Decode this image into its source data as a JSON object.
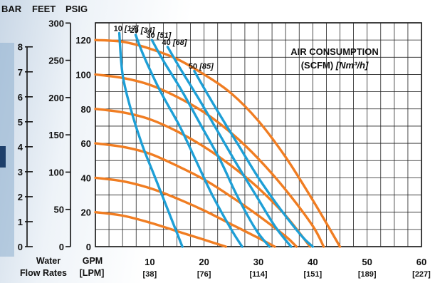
{
  "header": {
    "bar": "BAR",
    "feet": "FEET",
    "psig": "PSIG"
  },
  "chart_data": {
    "type": "line",
    "title": "AIR CONSUMPTION",
    "subtitle_prefix": "(SCFM) ",
    "subtitle_units": "[Nm³/h]",
    "xlabel_left_top": "Water",
    "xlabel_left_bottom": "Flow Rates",
    "xlabel_gpm": "GPM",
    "xlabel_lpm": "[LPM]",
    "xlim": [
      0,
      60
    ],
    "ylim": [
      0,
      130
    ],
    "x_ticks": [
      {
        "value": 10,
        "label": "10",
        "sub": "[38]"
      },
      {
        "value": 20,
        "label": "20",
        "sub": "[76]"
      },
      {
        "value": 30,
        "label": "30",
        "sub": "[114]"
      },
      {
        "value": 40,
        "label": "40",
        "sub": "[151]"
      },
      {
        "value": 50,
        "label": "50",
        "sub": "[189]"
      },
      {
        "value": 60,
        "label": "60",
        "sub": "[227]"
      }
    ],
    "y_ticks_psig": [
      0,
      20,
      40,
      60,
      80,
      100,
      120
    ],
    "y_ticks_feet": [
      0,
      50,
      100,
      150,
      200,
      250,
      300
    ],
    "y_ticks_bar": [
      0,
      1,
      2,
      3,
      4,
      5,
      6,
      7,
      8
    ],
    "pressure_series": [
      {
        "color": "#f07d22",
        "points": [
          [
            0,
            120
          ],
          [
            5,
            119
          ],
          [
            10,
            115
          ],
          [
            15,
            109
          ],
          [
            20,
            100
          ],
          [
            25,
            89
          ],
          [
            30,
            73
          ],
          [
            35,
            52
          ],
          [
            40,
            27
          ],
          [
            45,
            0
          ]
        ]
      },
      {
        "color": "#f07d22",
        "points": [
          [
            0,
            100
          ],
          [
            5,
            98
          ],
          [
            10,
            94
          ],
          [
            15,
            87
          ],
          [
            20,
            78
          ],
          [
            25,
            66
          ],
          [
            30,
            51
          ],
          [
            35,
            33
          ],
          [
            40,
            12
          ],
          [
            42,
            0
          ]
        ]
      },
      {
        "color": "#f07d22",
        "points": [
          [
            0,
            80
          ],
          [
            5,
            78
          ],
          [
            10,
            74
          ],
          [
            15,
            67
          ],
          [
            20,
            58
          ],
          [
            25,
            47
          ],
          [
            30,
            34
          ],
          [
            35,
            18
          ],
          [
            39.5,
            0
          ]
        ]
      },
      {
        "color": "#f07d22",
        "points": [
          [
            0,
            60
          ],
          [
            5,
            58
          ],
          [
            10,
            54
          ],
          [
            15,
            47
          ],
          [
            20,
            39
          ],
          [
            25,
            29
          ],
          [
            30,
            18
          ],
          [
            35,
            6
          ],
          [
            37,
            0
          ]
        ]
      },
      {
        "color": "#f07d22",
        "points": [
          [
            0,
            40
          ],
          [
            5,
            38
          ],
          [
            10,
            34
          ],
          [
            15,
            28
          ],
          [
            20,
            21
          ],
          [
            25,
            13
          ],
          [
            30,
            5
          ],
          [
            33,
            0
          ]
        ]
      },
      {
        "color": "#f07d22",
        "points": [
          [
            0,
            20
          ],
          [
            5,
            18
          ],
          [
            10,
            14
          ],
          [
            15,
            9
          ],
          [
            20,
            4
          ],
          [
            24,
            0
          ]
        ]
      }
    ],
    "air_series": [
      {
        "label": "10",
        "nm": "[17]",
        "color": "#1e9fd6",
        "points": [
          [
            4.4,
            124
          ],
          [
            5,
            100
          ],
          [
            6.5,
            80
          ],
          [
            8.5,
            60
          ],
          [
            11,
            40
          ],
          [
            13.5,
            20
          ],
          [
            16,
            0
          ]
        ]
      },
      {
        "label": "20",
        "nm": "[34]",
        "color": "#1e9fd6",
        "points": [
          [
            7.4,
            123
          ],
          [
            9,
            110
          ],
          [
            12,
            90
          ],
          [
            15.5,
            70
          ],
          [
            18.5,
            50
          ],
          [
            21.5,
            30
          ],
          [
            25,
            10
          ],
          [
            27,
            0
          ]
        ]
      },
      {
        "label": "30",
        "nm": "[51]",
        "color": "#1e9fd6",
        "points": [
          [
            10.4,
            120
          ],
          [
            12.5,
            108
          ],
          [
            16,
            90
          ],
          [
            19.5,
            70
          ],
          [
            23,
            50
          ],
          [
            26,
            30
          ],
          [
            29.5,
            10
          ],
          [
            32,
            0
          ]
        ]
      },
      {
        "label": "40",
        "nm": "[68]",
        "color": "#1e9fd6",
        "points": [
          [
            13.3,
            116
          ],
          [
            15.5,
            104
          ],
          [
            19,
            86
          ],
          [
            22.5,
            67
          ],
          [
            26,
            48
          ],
          [
            29.5,
            30
          ],
          [
            33,
            12
          ],
          [
            36,
            0
          ]
        ]
      },
      {
        "label": "50",
        "nm": "[85]",
        "color": "#1e9fd6",
        "points": [
          [
            18.2,
            102
          ],
          [
            20,
            92
          ],
          [
            23,
            76
          ],
          [
            26.5,
            58
          ],
          [
            30,
            40
          ],
          [
            34,
            22
          ],
          [
            38,
            6
          ],
          [
            40,
            0
          ]
        ]
      }
    ]
  }
}
